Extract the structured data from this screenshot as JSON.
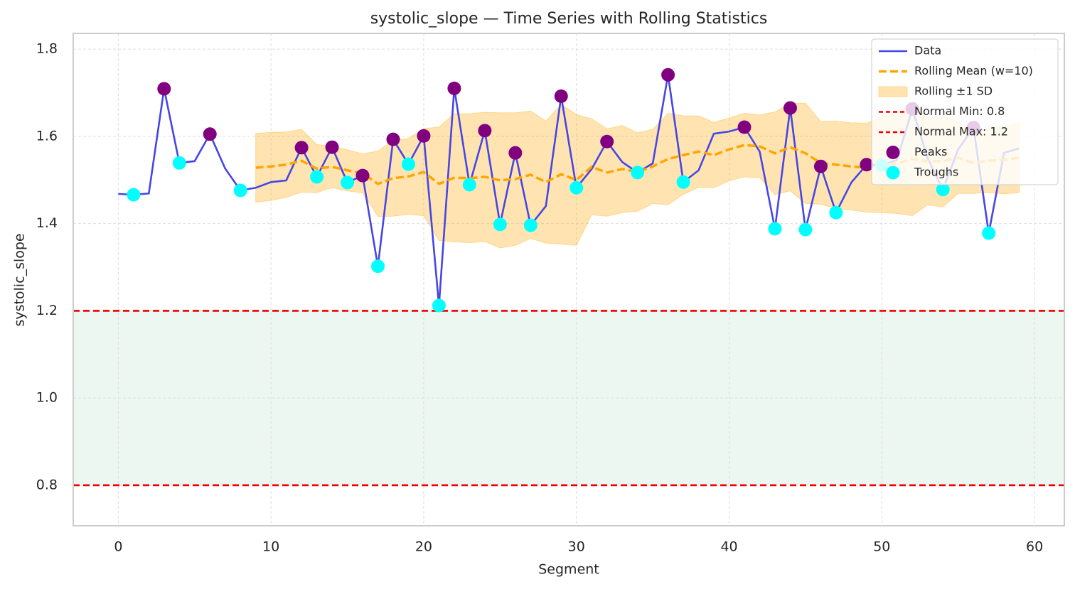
{
  "chart_data": {
    "type": "line",
    "title": "systolic_slope — Time Series with Rolling Statistics",
    "xlabel": "Segment",
    "ylabel": "systolic_slope",
    "xlim": [
      -2.95,
      61.95
    ],
    "ylim": [
      0.707,
      1.836
    ],
    "xticks": [
      0,
      10,
      20,
      30,
      40,
      50,
      60
    ],
    "yticks": [
      0.8,
      {
        "value": 1,
        "label": "1.0"
      },
      1.2,
      1.4,
      1.6,
      1.8
    ],
    "grid": true,
    "legend": "upper right",
    "x": [
      0,
      1,
      2,
      3,
      4,
      5,
      6,
      7,
      8,
      9,
      10,
      11,
      12,
      13,
      14,
      15,
      16,
      17,
      18,
      19,
      20,
      21,
      22,
      23,
      24,
      25,
      26,
      27,
      28,
      29,
      30,
      31,
      32,
      33,
      34,
      35,
      36,
      37,
      38,
      39,
      40,
      41,
      42,
      43,
      44,
      45,
      46,
      47,
      48,
      49,
      50,
      51,
      52,
      53,
      54,
      55,
      56,
      57,
      58,
      59
    ],
    "series": [
      {
        "name": "Data",
        "color": "#4646e4",
        "dash": false,
        "values": [
          1.468,
          1.466,
          1.469,
          1.709,
          1.539,
          1.543,
          1.605,
          1.526,
          1.476,
          1.482,
          1.495,
          1.499,
          1.574,
          1.507,
          1.575,
          1.494,
          1.51,
          1.302,
          1.593,
          1.536,
          1.601,
          1.212,
          1.71,
          1.489,
          1.613,
          1.398,
          1.562,
          1.396,
          1.44,
          1.692,
          1.482,
          1.525,
          1.588,
          1.541,
          1.517,
          1.538,
          1.741,
          1.495,
          1.522,
          1.606,
          1.611,
          1.621,
          1.565,
          1.388,
          1.665,
          1.386,
          1.531,
          1.425,
          1.494,
          1.535,
          1.534,
          1.546,
          1.663,
          1.55,
          1.478,
          1.57,
          1.62,
          1.378,
          1.562,
          1.572
        ]
      },
      {
        "name": "Rolling Mean (w=10)",
        "color": "#ffa500",
        "dash": true,
        "values": [
          null,
          null,
          null,
          null,
          null,
          null,
          null,
          null,
          null,
          1.528,
          1.531,
          1.535,
          1.544,
          1.526,
          1.53,
          1.522,
          1.515,
          1.491,
          1.504,
          1.508,
          1.518,
          1.491,
          1.505,
          1.504,
          1.507,
          1.499,
          1.502,
          1.512,
          1.495,
          1.513,
          1.5,
          1.53,
          1.517,
          1.525,
          1.518,
          1.531,
          1.548,
          1.557,
          1.565,
          1.557,
          1.57,
          1.58,
          1.577,
          1.561,
          1.575,
          1.561,
          1.539,
          1.535,
          1.531,
          1.528,
          1.535,
          1.538,
          1.548,
          1.543,
          1.543,
          1.551,
          1.539,
          1.544,
          1.546,
          1.551
        ]
      }
    ],
    "band": {
      "name": "Rolling ±1 SD",
      "color": "#ffa500",
      "sd": [
        null,
        null,
        null,
        null,
        null,
        null,
        null,
        null,
        null,
        0.079,
        0.078,
        0.075,
        0.072,
        0.055,
        0.048,
        0.047,
        0.045,
        0.075,
        0.087,
        0.087,
        0.1,
        0.13,
        0.147,
        0.148,
        0.148,
        0.155,
        0.152,
        0.146,
        0.14,
        0.16,
        0.15,
        0.11,
        0.1,
        0.1,
        0.09,
        0.085,
        0.105,
        0.09,
        0.082,
        0.075,
        0.072,
        0.073,
        0.072,
        0.095,
        0.1,
        0.115,
        0.095,
        0.1,
        0.1,
        0.102,
        0.11,
        0.115,
        0.13,
        0.1,
        0.105,
        0.082,
        0.07,
        0.073,
        0.078,
        0.08
      ]
    },
    "hlines": [
      {
        "name": "Normal Min: 0.8",
        "value": 0.8,
        "color": "#ee0000"
      },
      {
        "name": "Normal Max: 1.2",
        "value": 1.2,
        "color": "#ee0000"
      }
    ],
    "normal_range_color": "#d8ede2",
    "markers": [
      {
        "name": "Peaks",
        "color": "#800080",
        "x": [
          3,
          6,
          12,
          14,
          16,
          18,
          20,
          22,
          24,
          26,
          29,
          32,
          36,
          41,
          44,
          46,
          49,
          52,
          56
        ],
        "values": [
          1.709,
          1.605,
          1.574,
          1.575,
          1.51,
          1.593,
          1.601,
          1.71,
          1.613,
          1.562,
          1.692,
          1.588,
          1.741,
          1.621,
          1.665,
          1.531,
          1.535,
          1.663,
          1.62
        ]
      },
      {
        "name": "Troughs",
        "color": "#00ffff",
        "x": [
          1,
          4,
          8,
          13,
          15,
          17,
          19,
          21,
          23,
          25,
          27,
          30,
          34,
          37,
          43,
          45,
          47,
          50,
          54,
          57
        ],
        "values": [
          1.466,
          1.539,
          1.476,
          1.507,
          1.494,
          1.302,
          1.536,
          1.212,
          1.489,
          1.398,
          1.396,
          1.482,
          1.517,
          1.495,
          1.388,
          1.386,
          1.425,
          1.534,
          1.478,
          1.378
        ]
      }
    ]
  }
}
